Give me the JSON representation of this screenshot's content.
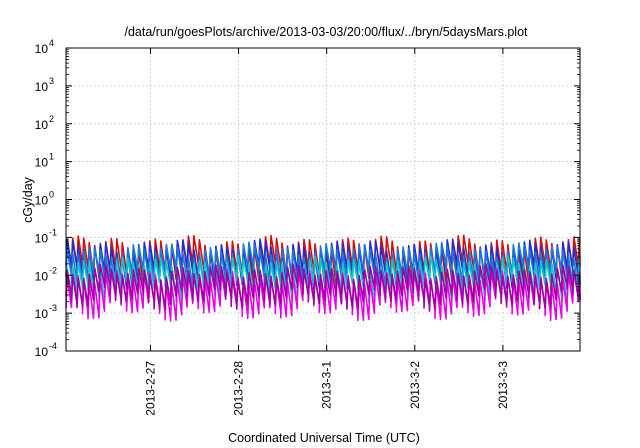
{
  "chart_data": {
    "type": "line",
    "title": "/data/run/goesPlots/archive/2013-03-03/20:00/flux/../bryn/5daysMars.plot",
    "xlabel": "Coordinated Universal Time (UTC)",
    "ylabel": "cGy/day",
    "y_scale": "log",
    "ylim": [
      0.0001,
      10000
    ],
    "y_ticks": [
      {
        "value": 10000,
        "base": "10",
        "exp": "4"
      },
      {
        "value": 1000,
        "base": "10",
        "exp": "3"
      },
      {
        "value": 100,
        "base": "10",
        "exp": "2"
      },
      {
        "value": 10,
        "base": "10",
        "exp": "1"
      },
      {
        "value": 1,
        "base": "10",
        "exp": "0"
      },
      {
        "value": 0.1,
        "base": "10",
        "exp": "-1"
      },
      {
        "value": 0.01,
        "base": "10",
        "exp": "-2"
      },
      {
        "value": 0.001,
        "base": "10",
        "exp": "-3"
      },
      {
        "value": 0.0001,
        "base": "10",
        "exp": "-4"
      }
    ],
    "xlim": [
      "2013-02-26 01:00",
      "2013-03-03 21:00"
    ],
    "x_ticks": [
      "2013-2-27",
      "2013-2-28",
      "2013-3-1",
      "2013-3-2",
      "2013-3-3"
    ],
    "grid": true,
    "legend": "none",
    "sawtooth_period_hours": 1.5,
    "series": [
      {
        "color": "#d01010",
        "peak": 0.07,
        "trough": 0.01
      },
      {
        "color": "#2030d0",
        "peak": 0.055,
        "trough": 0.009
      },
      {
        "color": "#1e78d8",
        "peak": 0.045,
        "trough": 0.008
      },
      {
        "color": "#10c8c8",
        "peak": 0.02,
        "trough": 0.004
      },
      {
        "color": "#e800e8",
        "peak": 0.009,
        "trough": 0.0013
      },
      {
        "color": "#a000a0",
        "peak": 0.012,
        "trough": 0.0025
      }
    ]
  }
}
